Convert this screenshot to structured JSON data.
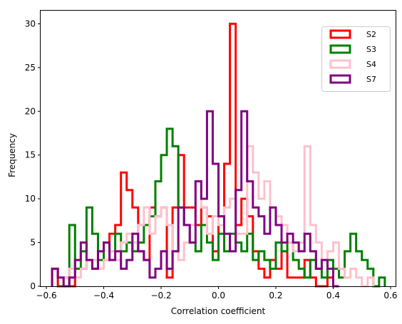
{
  "chart_data": {
    "type": "histogram",
    "title": "",
    "xlabel": "Correlation coefficient",
    "ylabel": "Frequency",
    "xlim": [
      -0.62,
      0.62
    ],
    "ylim": [
      0,
      31.5
    ],
    "xticks": [
      -0.6,
      -0.4,
      -0.2,
      0.0,
      0.2,
      0.4,
      0.6
    ],
    "xtick_labels": [
      "−0.6",
      "−0.4",
      "−0.2",
      "0.0",
      "0.2",
      "0.4",
      "0.6"
    ],
    "yticks": [
      0,
      5,
      10,
      15,
      20,
      25,
      30
    ],
    "ytick_labels": [
      "0",
      "5",
      "10",
      "15",
      "20",
      "25",
      "30"
    ],
    "grid": false,
    "legend_position": "top-right",
    "histtype": "step",
    "bin_width": 0.02,
    "series": [
      {
        "name": "S2",
        "color": "#ff0000",
        "bins": [
          {
            "x0": -0.58,
            "count": 2
          },
          {
            "x0": -0.56,
            "count": 0
          },
          {
            "x0": -0.54,
            "count": 1
          },
          {
            "x0": -0.52,
            "count": 0
          },
          {
            "x0": -0.5,
            "count": 2
          },
          {
            "x0": -0.48,
            "count": 2
          },
          {
            "x0": -0.46,
            "count": 3
          },
          {
            "x0": -0.44,
            "count": 2
          },
          {
            "x0": -0.42,
            "count": 4
          },
          {
            "x0": -0.4,
            "count": 3
          },
          {
            "x0": -0.38,
            "count": 6
          },
          {
            "x0": -0.36,
            "count": 7
          },
          {
            "x0": -0.34,
            "count": 13
          },
          {
            "x0": -0.32,
            "count": 11
          },
          {
            "x0": -0.3,
            "count": 9
          },
          {
            "x0": -0.28,
            "count": 4
          },
          {
            "x0": -0.26,
            "count": 3
          },
          {
            "x0": -0.24,
            "count": 9
          },
          {
            "x0": -0.22,
            "count": 8
          },
          {
            "x0": -0.2,
            "count": 9
          },
          {
            "x0": -0.18,
            "count": 1
          },
          {
            "x0": -0.16,
            "count": 9
          },
          {
            "x0": -0.14,
            "count": 15
          },
          {
            "x0": -0.12,
            "count": 9
          },
          {
            "x0": -0.1,
            "count": 9
          },
          {
            "x0": -0.08,
            "count": 7
          },
          {
            "x0": -0.06,
            "count": 9
          },
          {
            "x0": -0.04,
            "count": 8
          },
          {
            "x0": -0.02,
            "count": 4
          },
          {
            "x0": 0.0,
            "count": 8
          },
          {
            "x0": 0.02,
            "count": 14
          },
          {
            "x0": 0.04,
            "count": 30
          },
          {
            "x0": 0.06,
            "count": 7
          },
          {
            "x0": 0.08,
            "count": 10
          },
          {
            "x0": 0.1,
            "count": 8
          },
          {
            "x0": 0.12,
            "count": 4
          },
          {
            "x0": 0.14,
            "count": 2
          },
          {
            "x0": 0.16,
            "count": 1
          },
          {
            "x0": 0.18,
            "count": 3
          },
          {
            "x0": 0.2,
            "count": 2
          },
          {
            "x0": 0.22,
            "count": 4
          },
          {
            "x0": 0.24,
            "count": 1
          },
          {
            "x0": 0.26,
            "count": 1
          },
          {
            "x0": 0.28,
            "count": 1
          },
          {
            "x0": 0.3,
            "count": 3
          },
          {
            "x0": 0.32,
            "count": 1
          },
          {
            "x0": 0.34,
            "count": 0
          },
          {
            "x0": 0.36,
            "count": 0
          },
          {
            "x0": 0.38,
            "count": 1
          }
        ]
      },
      {
        "name": "S3",
        "color": "#008000",
        "bins": [
          {
            "x0": -0.54,
            "count": 0
          },
          {
            "x0": -0.52,
            "count": 7
          },
          {
            "x0": -0.5,
            "count": 2
          },
          {
            "x0": -0.48,
            "count": 4
          },
          {
            "x0": -0.46,
            "count": 9
          },
          {
            "x0": -0.44,
            "count": 6
          },
          {
            "x0": -0.42,
            "count": 3
          },
          {
            "x0": -0.4,
            "count": 5
          },
          {
            "x0": -0.38,
            "count": 4
          },
          {
            "x0": -0.36,
            "count": 6
          },
          {
            "x0": -0.34,
            "count": 4
          },
          {
            "x0": -0.32,
            "count": 5
          },
          {
            "x0": -0.3,
            "count": 4
          },
          {
            "x0": -0.28,
            "count": 5
          },
          {
            "x0": -0.26,
            "count": 7
          },
          {
            "x0": -0.24,
            "count": 8
          },
          {
            "x0": -0.22,
            "count": 12
          },
          {
            "x0": -0.2,
            "count": 15
          },
          {
            "x0": -0.18,
            "count": 18
          },
          {
            "x0": -0.16,
            "count": 16
          },
          {
            "x0": -0.14,
            "count": 9
          },
          {
            "x0": -0.12,
            "count": 7
          },
          {
            "x0": -0.1,
            "count": 5
          },
          {
            "x0": -0.08,
            "count": 4
          },
          {
            "x0": -0.06,
            "count": 7
          },
          {
            "x0": -0.04,
            "count": 5
          },
          {
            "x0": -0.02,
            "count": 3
          },
          {
            "x0": 0.0,
            "count": 6
          },
          {
            "x0": 0.02,
            "count": 4
          },
          {
            "x0": 0.04,
            "count": 6
          },
          {
            "x0": 0.06,
            "count": 5
          },
          {
            "x0": 0.08,
            "count": 4
          },
          {
            "x0": 0.1,
            "count": 6
          },
          {
            "x0": 0.12,
            "count": 3
          },
          {
            "x0": 0.14,
            "count": 4
          },
          {
            "x0": 0.16,
            "count": 3
          },
          {
            "x0": 0.18,
            "count": 2
          },
          {
            "x0": 0.2,
            "count": 5
          },
          {
            "x0": 0.22,
            "count": 4
          },
          {
            "x0": 0.24,
            "count": 5
          },
          {
            "x0": 0.26,
            "count": 3
          },
          {
            "x0": 0.28,
            "count": 2
          },
          {
            "x0": 0.3,
            "count": 1
          },
          {
            "x0": 0.32,
            "count": 3
          },
          {
            "x0": 0.34,
            "count": 2
          },
          {
            "x0": 0.36,
            "count": 1
          },
          {
            "x0": 0.38,
            "count": 3
          },
          {
            "x0": 0.4,
            "count": 2
          },
          {
            "x0": 0.42,
            "count": 1
          },
          {
            "x0": 0.44,
            "count": 4
          },
          {
            "x0": 0.46,
            "count": 6
          },
          {
            "x0": 0.48,
            "count": 4
          },
          {
            "x0": 0.5,
            "count": 3
          },
          {
            "x0": 0.52,
            "count": 2
          },
          {
            "x0": 0.54,
            "count": 0
          },
          {
            "x0": 0.56,
            "count": 1
          }
        ]
      },
      {
        "name": "S4",
        "color": "#ffc0cb",
        "bins": [
          {
            "x0": -0.54,
            "count": 1
          },
          {
            "x0": -0.52,
            "count": 2
          },
          {
            "x0": -0.5,
            "count": 1
          },
          {
            "x0": -0.48,
            "count": 2
          },
          {
            "x0": -0.46,
            "count": 3
          },
          {
            "x0": -0.44,
            "count": 3
          },
          {
            "x0": -0.42,
            "count": 2
          },
          {
            "x0": -0.4,
            "count": 3
          },
          {
            "x0": -0.38,
            "count": 4
          },
          {
            "x0": -0.36,
            "count": 3
          },
          {
            "x0": -0.34,
            "count": 5
          },
          {
            "x0": -0.32,
            "count": 6
          },
          {
            "x0": -0.3,
            "count": 5
          },
          {
            "x0": -0.28,
            "count": 7
          },
          {
            "x0": -0.26,
            "count": 9
          },
          {
            "x0": -0.24,
            "count": 6
          },
          {
            "x0": -0.22,
            "count": 8
          },
          {
            "x0": -0.2,
            "count": 9
          },
          {
            "x0": -0.18,
            "count": 7
          },
          {
            "x0": -0.16,
            "count": 4
          },
          {
            "x0": -0.14,
            "count": 3
          },
          {
            "x0": -0.12,
            "count": 5
          },
          {
            "x0": -0.1,
            "count": 7
          },
          {
            "x0": -0.08,
            "count": 12
          },
          {
            "x0": -0.06,
            "count": 9
          },
          {
            "x0": -0.04,
            "count": 6
          },
          {
            "x0": -0.02,
            "count": 8
          },
          {
            "x0": 0.0,
            "count": 7
          },
          {
            "x0": 0.02,
            "count": 9
          },
          {
            "x0": 0.04,
            "count": 10
          },
          {
            "x0": 0.06,
            "count": 6
          },
          {
            "x0": 0.08,
            "count": 6
          },
          {
            "x0": 0.1,
            "count": 16
          },
          {
            "x0": 0.12,
            "count": 13
          },
          {
            "x0": 0.14,
            "count": 10
          },
          {
            "x0": 0.16,
            "count": 12
          },
          {
            "x0": 0.18,
            "count": 9
          },
          {
            "x0": 0.2,
            "count": 8
          },
          {
            "x0": 0.22,
            "count": 7
          },
          {
            "x0": 0.24,
            "count": 5
          },
          {
            "x0": 0.26,
            "count": 4
          },
          {
            "x0": 0.28,
            "count": 5
          },
          {
            "x0": 0.3,
            "count": 16
          },
          {
            "x0": 0.32,
            "count": 7
          },
          {
            "x0": 0.34,
            "count": 5
          },
          {
            "x0": 0.36,
            "count": 3
          },
          {
            "x0": 0.38,
            "count": 4
          },
          {
            "x0": 0.4,
            "count": 5
          },
          {
            "x0": 0.42,
            "count": 2
          },
          {
            "x0": 0.44,
            "count": 1
          },
          {
            "x0": 0.46,
            "count": 2
          },
          {
            "x0": 0.48,
            "count": 1
          },
          {
            "x0": 0.5,
            "count": 0
          },
          {
            "x0": 0.52,
            "count": 1
          }
        ]
      },
      {
        "name": "S7",
        "color": "#800080",
        "bins": [
          {
            "x0": -0.58,
            "count": 2
          },
          {
            "x0": -0.56,
            "count": 1
          },
          {
            "x0": -0.54,
            "count": 0
          },
          {
            "x0": -0.52,
            "count": 1
          },
          {
            "x0": -0.5,
            "count": 3
          },
          {
            "x0": -0.48,
            "count": 5
          },
          {
            "x0": -0.46,
            "count": 3
          },
          {
            "x0": -0.44,
            "count": 2
          },
          {
            "x0": -0.42,
            "count": 4
          },
          {
            "x0": -0.4,
            "count": 5
          },
          {
            "x0": -0.38,
            "count": 3
          },
          {
            "x0": -0.36,
            "count": 4
          },
          {
            "x0": -0.34,
            "count": 2
          },
          {
            "x0": -0.32,
            "count": 3
          },
          {
            "x0": -0.3,
            "count": 6
          },
          {
            "x0": -0.28,
            "count": 4
          },
          {
            "x0": -0.26,
            "count": 3
          },
          {
            "x0": -0.24,
            "count": 1
          },
          {
            "x0": -0.22,
            "count": 2
          },
          {
            "x0": -0.2,
            "count": 4
          },
          {
            "x0": -0.18,
            "count": 2
          },
          {
            "x0": -0.16,
            "count": 4
          },
          {
            "x0": -0.14,
            "count": 9
          },
          {
            "x0": -0.12,
            "count": 7
          },
          {
            "x0": -0.1,
            "count": 5
          },
          {
            "x0": -0.08,
            "count": 12
          },
          {
            "x0": -0.06,
            "count": 10
          },
          {
            "x0": -0.04,
            "count": 20
          },
          {
            "x0": -0.02,
            "count": 14
          },
          {
            "x0": 0.0,
            "count": 8
          },
          {
            "x0": 0.02,
            "count": 6
          },
          {
            "x0": 0.04,
            "count": 4
          },
          {
            "x0": 0.06,
            "count": 11
          },
          {
            "x0": 0.08,
            "count": 20
          },
          {
            "x0": 0.1,
            "count": 12
          },
          {
            "x0": 0.12,
            "count": 9
          },
          {
            "x0": 0.14,
            "count": 8
          },
          {
            "x0": 0.16,
            "count": 6
          },
          {
            "x0": 0.18,
            "count": 9
          },
          {
            "x0": 0.2,
            "count": 7
          },
          {
            "x0": 0.22,
            "count": 5
          },
          {
            "x0": 0.24,
            "count": 6
          },
          {
            "x0": 0.26,
            "count": 5
          },
          {
            "x0": 0.28,
            "count": 4
          },
          {
            "x0": 0.3,
            "count": 6
          },
          {
            "x0": 0.32,
            "count": 4
          },
          {
            "x0": 0.34,
            "count": 2
          },
          {
            "x0": 0.36,
            "count": 3
          },
          {
            "x0": 0.38,
            "count": 2
          },
          {
            "x0": 0.4,
            "count": 0
          }
        ]
      }
    ]
  }
}
